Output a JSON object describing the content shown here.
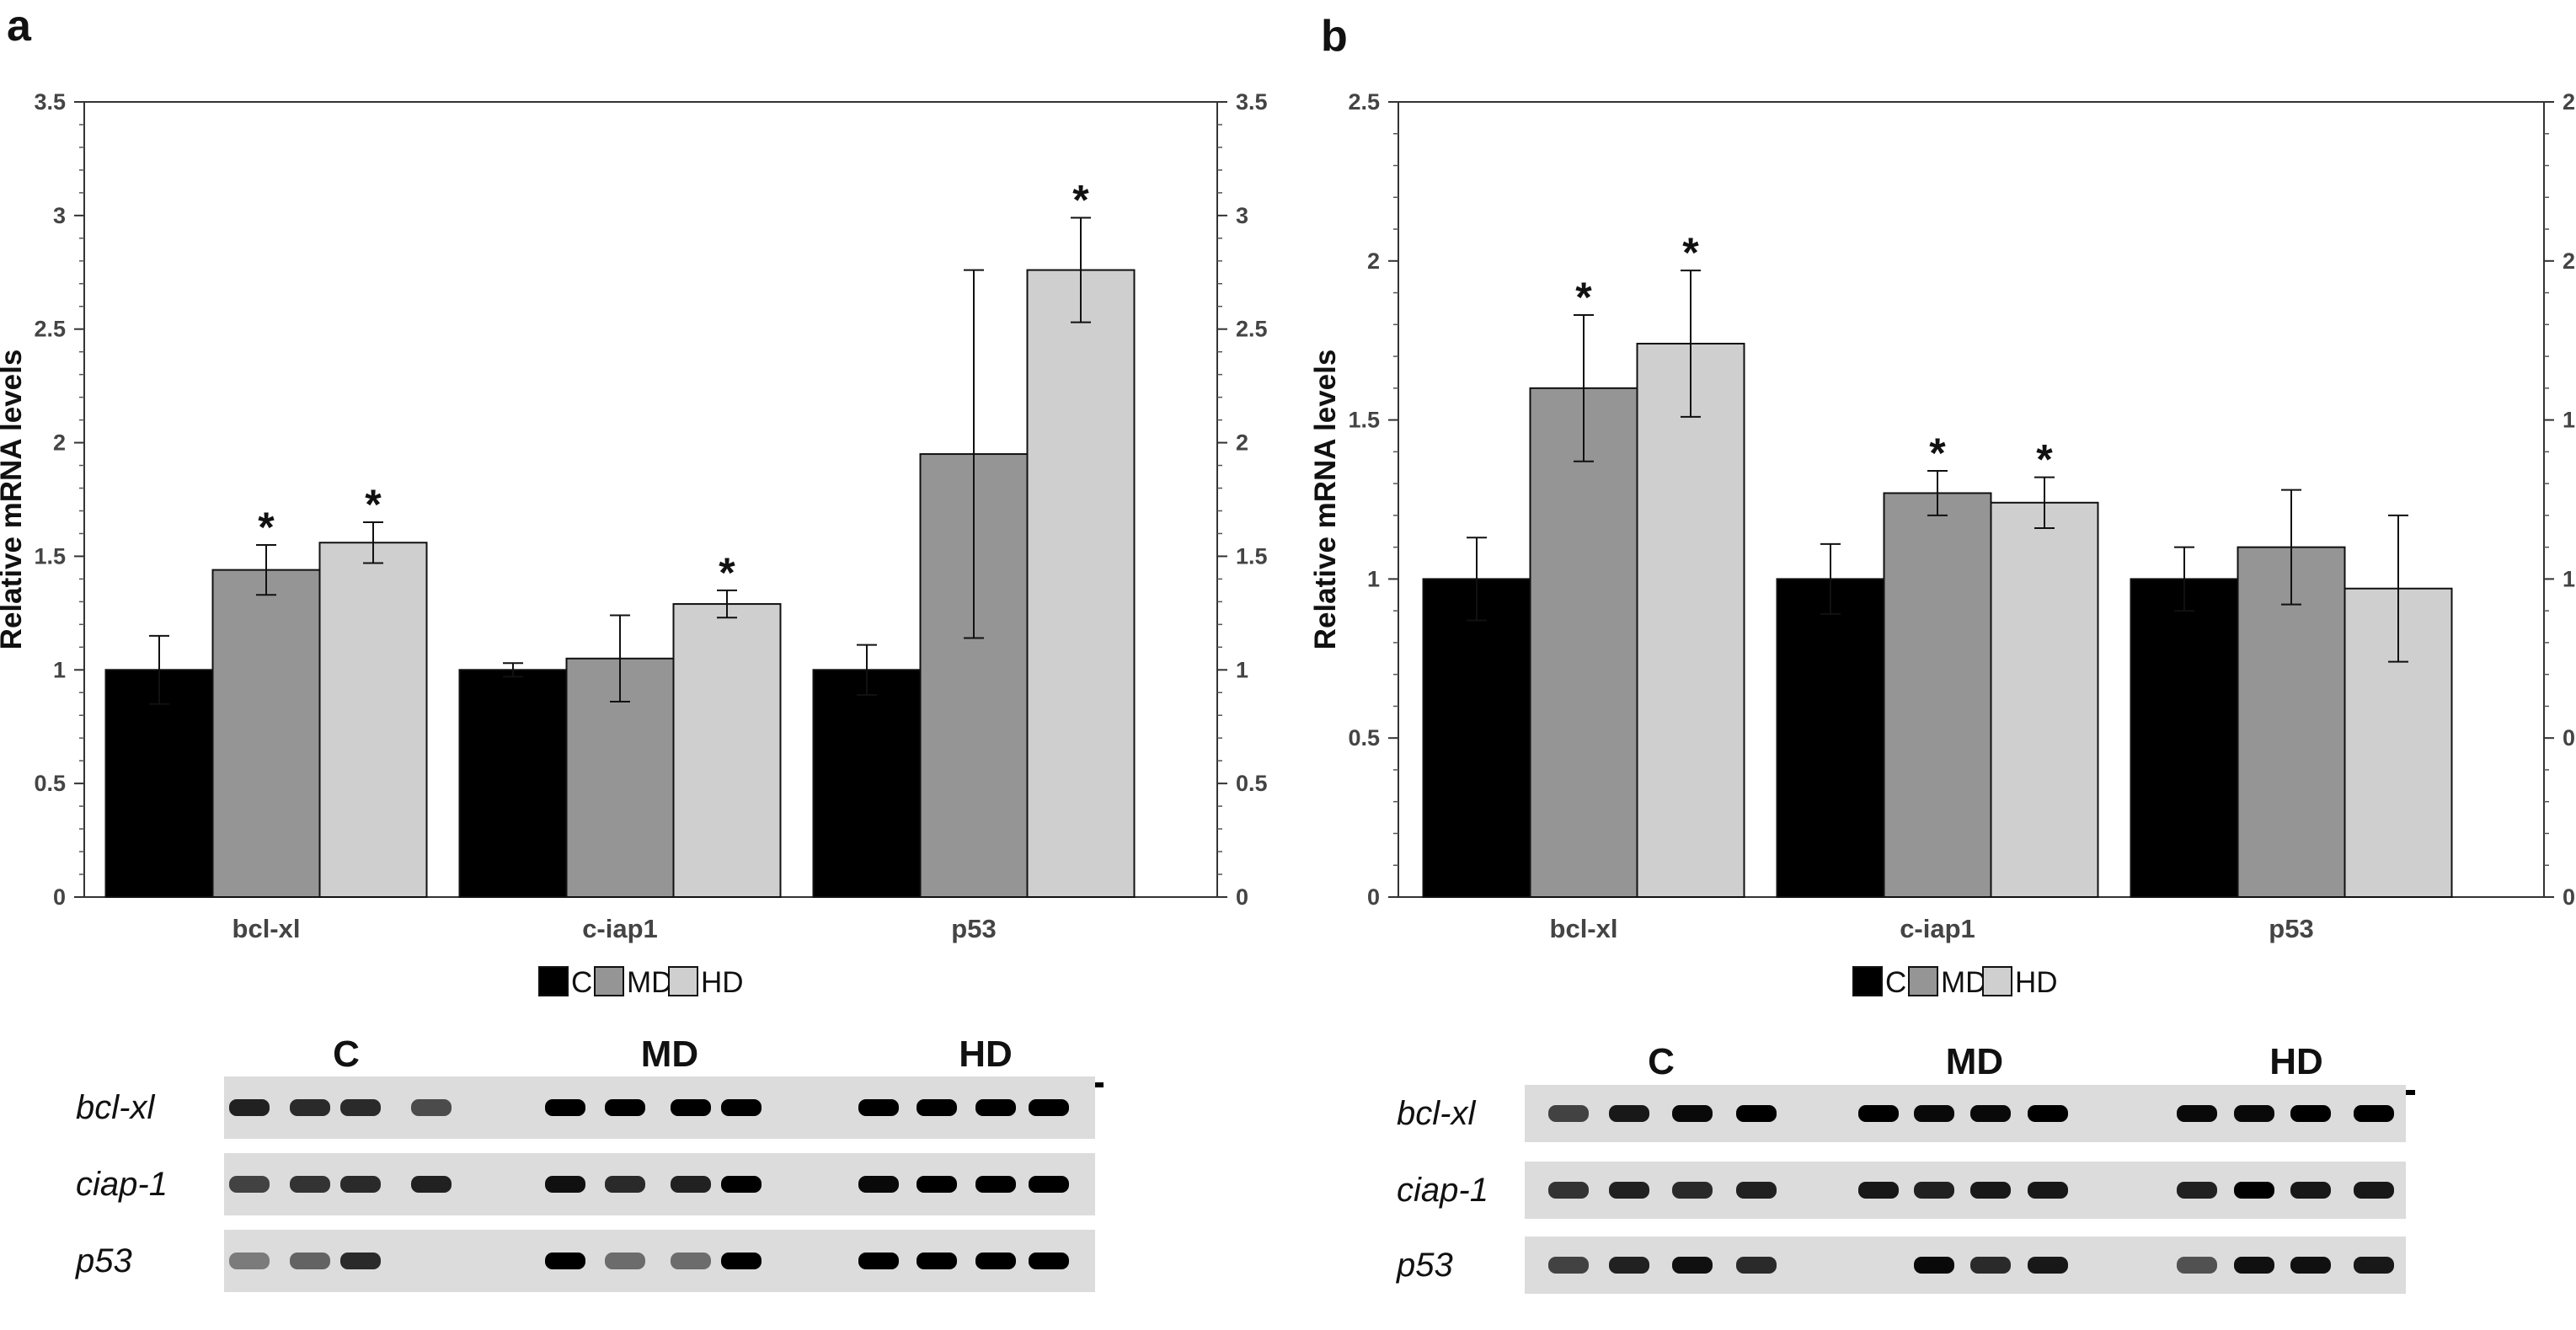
{
  "figure": {
    "panels": [
      {
        "letter": "a"
      },
      {
        "letter": "b"
      }
    ],
    "legend": {
      "items": [
        {
          "label": "C",
          "color": "#000000"
        },
        {
          "label": "MD",
          "color": "#959595"
        },
        {
          "label": "HD",
          "color": "#cfcfcf"
        }
      ]
    },
    "gel": {
      "group_labels": [
        "C",
        "MD",
        "HD"
      ],
      "genes": [
        "bcl-xl",
        "ciap-1",
        "p53"
      ]
    }
  },
  "chart_data": [
    {
      "type": "bar",
      "panel": "a",
      "ylabel": "Relative mRNA levels",
      "xlabel": "",
      "ylim": [
        0,
        3.5
      ],
      "yticks": [
        "0",
        "0.5",
        "1",
        "1.5",
        "2",
        "2.5",
        "3",
        "3.5"
      ],
      "tick_values": [
        0,
        0.5,
        1,
        1.5,
        2,
        2.5,
        3,
        3.5
      ],
      "categories": [
        "bcl-xl",
        "c-iap1",
        "p53"
      ],
      "series": [
        {
          "name": "C",
          "color": "#000000",
          "values": [
            1.0,
            1.0,
            1.0
          ],
          "errors": [
            0.15,
            0.03,
            0.11
          ],
          "significant": [
            false,
            false,
            false
          ]
        },
        {
          "name": "MD",
          "color": "#959595",
          "values": [
            1.44,
            1.05,
            1.95
          ],
          "errors": [
            0.11,
            0.19,
            0.81
          ],
          "significant": [
            true,
            false,
            false
          ]
        },
        {
          "name": "HD",
          "color": "#cfcfcf",
          "values": [
            1.56,
            1.29,
            2.76
          ],
          "errors": [
            0.09,
            0.06,
            0.23
          ],
          "significant": [
            true,
            true,
            true
          ]
        }
      ],
      "significance_marker": "*"
    },
    {
      "type": "bar",
      "panel": "b",
      "ylabel": "Relative mRNA levels",
      "xlabel": "",
      "ylim": [
        0,
        2.5
      ],
      "yticks": [
        "0",
        "0.5",
        "1",
        "1.5",
        "2",
        "2.5"
      ],
      "tick_values": [
        0,
        0.5,
        1,
        1.5,
        2,
        2.5
      ],
      "categories": [
        "bcl-xl",
        "c-iap1",
        "p53"
      ],
      "series": [
        {
          "name": "C",
          "color": "#000000",
          "values": [
            1.0,
            1.0,
            1.0
          ],
          "errors": [
            0.13,
            0.11,
            0.1
          ],
          "significant": [
            false,
            false,
            false
          ]
        },
        {
          "name": "MD",
          "color": "#959595",
          "values": [
            1.6,
            1.27,
            1.1
          ],
          "errors": [
            0.23,
            0.07,
            0.18
          ],
          "significant": [
            true,
            true,
            false
          ]
        },
        {
          "name": "HD",
          "color": "#cfcfcf",
          "values": [
            1.74,
            1.24,
            0.97
          ],
          "errors": [
            0.23,
            0.08,
            0.23
          ],
          "significant": [
            true,
            true,
            false
          ]
        }
      ],
      "significance_marker": "*"
    }
  ]
}
